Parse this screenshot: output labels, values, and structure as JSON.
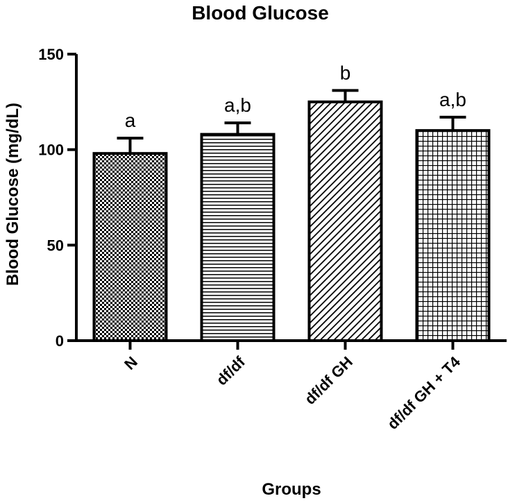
{
  "chart_data": {
    "type": "bar",
    "title": "Blood Glucose",
    "xlabel": "Groups",
    "ylabel": "Blood Glucose (mg/dL)",
    "ylim": [
      0,
      150
    ],
    "yticks": [
      0,
      50,
      100,
      150
    ],
    "categories": [
      "N",
      "df/df",
      "df/df GH",
      "df/df GH + T4"
    ],
    "values": [
      98,
      108,
      125,
      110
    ],
    "errors": [
      8,
      6,
      6,
      7
    ],
    "annotations": [
      "a",
      "a,b",
      "b",
      "a,b"
    ],
    "patterns": [
      "checker",
      "horizontal-lines",
      "diagonal-lines",
      "grid"
    ],
    "grid": false,
    "legend": "none",
    "colors": {
      "stroke": "#000000",
      "fill": "#ffffff"
    }
  }
}
